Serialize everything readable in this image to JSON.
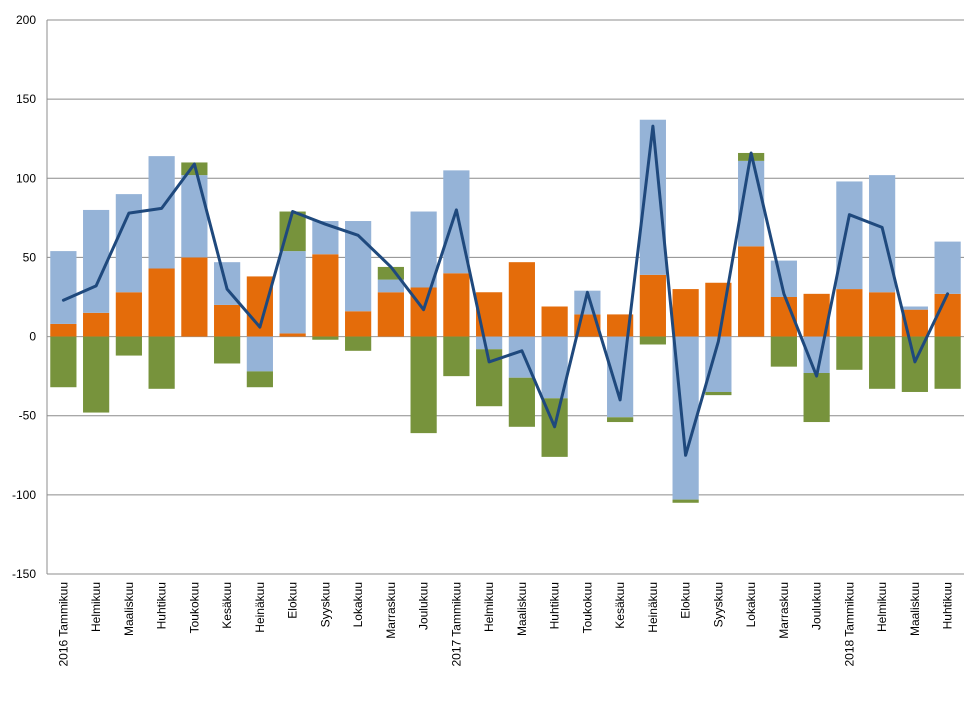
{
  "chart_data": {
    "type": "bar",
    "stacking": "stacked-with-line",
    "grid": true,
    "ylim": [
      -150,
      200
    ],
    "yticks": [
      -150,
      -100,
      -50,
      0,
      50,
      100,
      150,
      200
    ],
    "categories": [
      "2016 Tammikuu",
      "Helmikuu",
      "Maaliskuu",
      "Huhtikuu",
      "Toukokuu",
      "Kesäkuu",
      "Heinäkuu",
      "Elokuu",
      "Syyskuu",
      "Lokakuu",
      "Marraskuu",
      "Joulukuu",
      "2017 Tammikuu",
      "Helmikuu",
      "Maaliskuu",
      "Huhtikuu",
      "Toukokuu",
      "Kesäkuu",
      "Heinäkuu",
      "Elokuu",
      "Syyskuu",
      "Lokakuu",
      "Marraskuu",
      "Joulukuu",
      "2018 Tammikuu",
      "Helmikuu",
      "Maaliskuu",
      "Huhtikuu"
    ],
    "series": [
      {
        "kind": "bar",
        "color": "#E46C0A",
        "values": [
          8,
          15,
          28,
          43,
          50,
          20,
          38,
          2,
          52,
          16,
          28,
          31,
          40,
          28,
          47,
          19,
          14,
          14,
          39,
          30,
          34,
          57,
          25,
          27,
          30,
          28,
          17,
          27
        ]
      },
      {
        "kind": "bar",
        "color": "#95B3D7",
        "values": [
          46,
          65,
          62,
          71,
          52,
          27,
          -22,
          52,
          21,
          57,
          8,
          48,
          65,
          -8,
          -26,
          -39,
          15,
          -51,
          98,
          -103,
          -35,
          54,
          23,
          -23,
          68,
          74,
          2,
          33
        ]
      },
      {
        "kind": "bar",
        "color": "#77933C",
        "values": [
          -32,
          -48,
          -12,
          -33,
          8,
          -17,
          -10,
          25,
          -2,
          -9,
          8,
          -61,
          -25,
          -36,
          -31,
          -37,
          0,
          -3,
          -5,
          -2,
          -2,
          5,
          -19,
          -31,
          -21,
          -33,
          -35,
          -33
        ]
      },
      {
        "kind": "line",
        "color": "#1F497D",
        "values": [
          23,
          32,
          78,
          81,
          109,
          30,
          6,
          79,
          71,
          64,
          44,
          17,
          80,
          -16,
          -9,
          -57,
          28,
          -40,
          133,
          -75,
          -3,
          116,
          27,
          -25,
          77,
          69,
          -16,
          27
        ]
      }
    ]
  }
}
